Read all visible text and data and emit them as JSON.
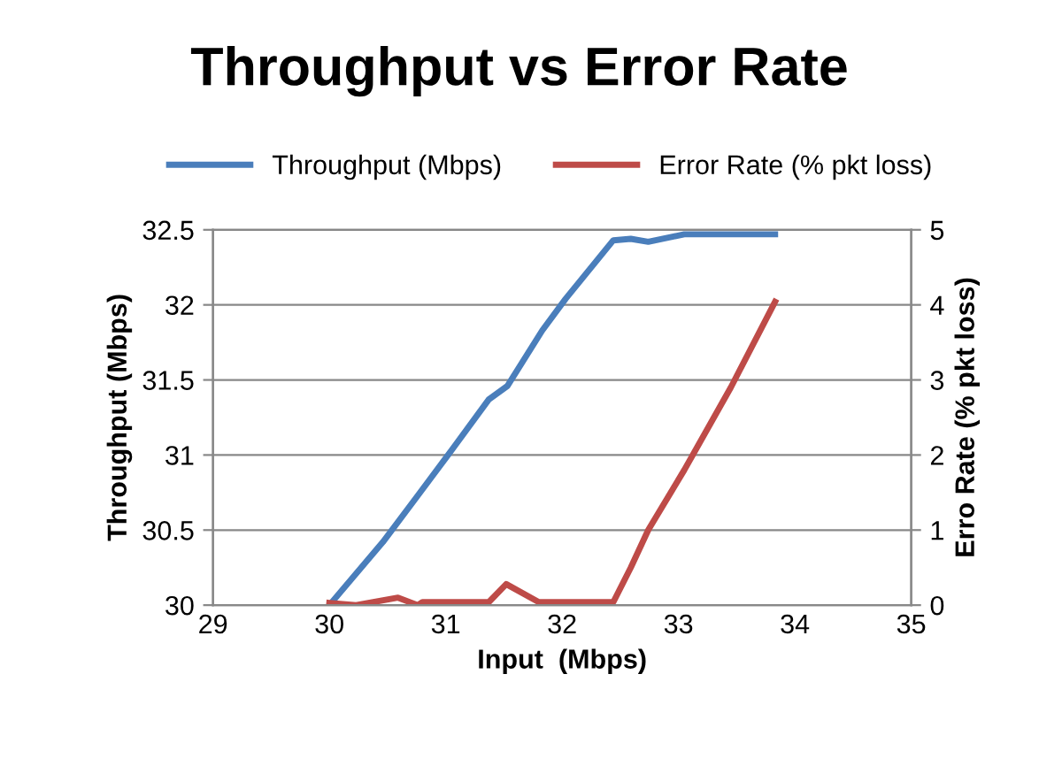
{
  "chart_data": {
    "type": "line",
    "title": "Throughput vs Error Rate",
    "xlabel": "Input  (Mbps)",
    "ylabel": "Throughput (Mbps)",
    "y2label": "Erro Rate (% pkt loss)",
    "xlim": [
      29,
      35
    ],
    "xticks": [
      29,
      30,
      31,
      32,
      33,
      34,
      35
    ],
    "ylim": [
      30,
      32.5
    ],
    "yticks": [
      30,
      30.5,
      31,
      31.5,
      32,
      32.5
    ],
    "y2lim": [
      0,
      5
    ],
    "y2ticks": [
      0,
      1,
      2,
      3,
      4,
      5
    ],
    "grid": "y",
    "legend": "top",
    "marker": "none",
    "line_style": "solid",
    "series": [
      {
        "name": "Throughput (Mbps)",
        "color": "#4a7ebb",
        "x": [
          30,
          30.46,
          30.76,
          31.02,
          31.37,
          31.53,
          31.83,
          32.03,
          32.44,
          32.59,
          32.74,
          33.05,
          33.83
        ],
        "values": [
          30,
          30.42,
          30.73,
          31,
          31.37,
          31.46,
          31.83,
          32.04,
          32.43,
          32.44,
          32.42,
          32.47,
          32.47
        ]
      },
      {
        "name": "Error Rate (% pkt loss)",
        "color": "#be4b48",
        "axis": "y2",
        "x": [
          30,
          30.23,
          30.59,
          30.76,
          30.8,
          31.37,
          31.52,
          31.8,
          32.44,
          32.59,
          32.74,
          33.05,
          33.45,
          33.83
        ],
        "values": [
          0.03,
          0,
          0.1,
          0,
          0.04,
          0.04,
          0.28,
          0.04,
          0.04,
          0.5,
          1,
          1.8,
          2.9,
          4.04
        ]
      }
    ]
  }
}
